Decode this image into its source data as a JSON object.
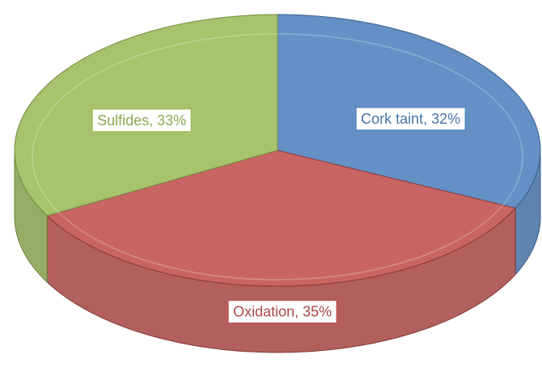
{
  "chart_data": {
    "type": "pie3d",
    "values": [
      32,
      35,
      33
    ],
    "value_labels": [
      "Cork taint, 32%",
      "Oxidation, 35%",
      "Sulfides, 33%"
    ],
    "colors": [
      "#4f81bd",
      "#c0504d",
      "#9bbb59"
    ]
  }
}
